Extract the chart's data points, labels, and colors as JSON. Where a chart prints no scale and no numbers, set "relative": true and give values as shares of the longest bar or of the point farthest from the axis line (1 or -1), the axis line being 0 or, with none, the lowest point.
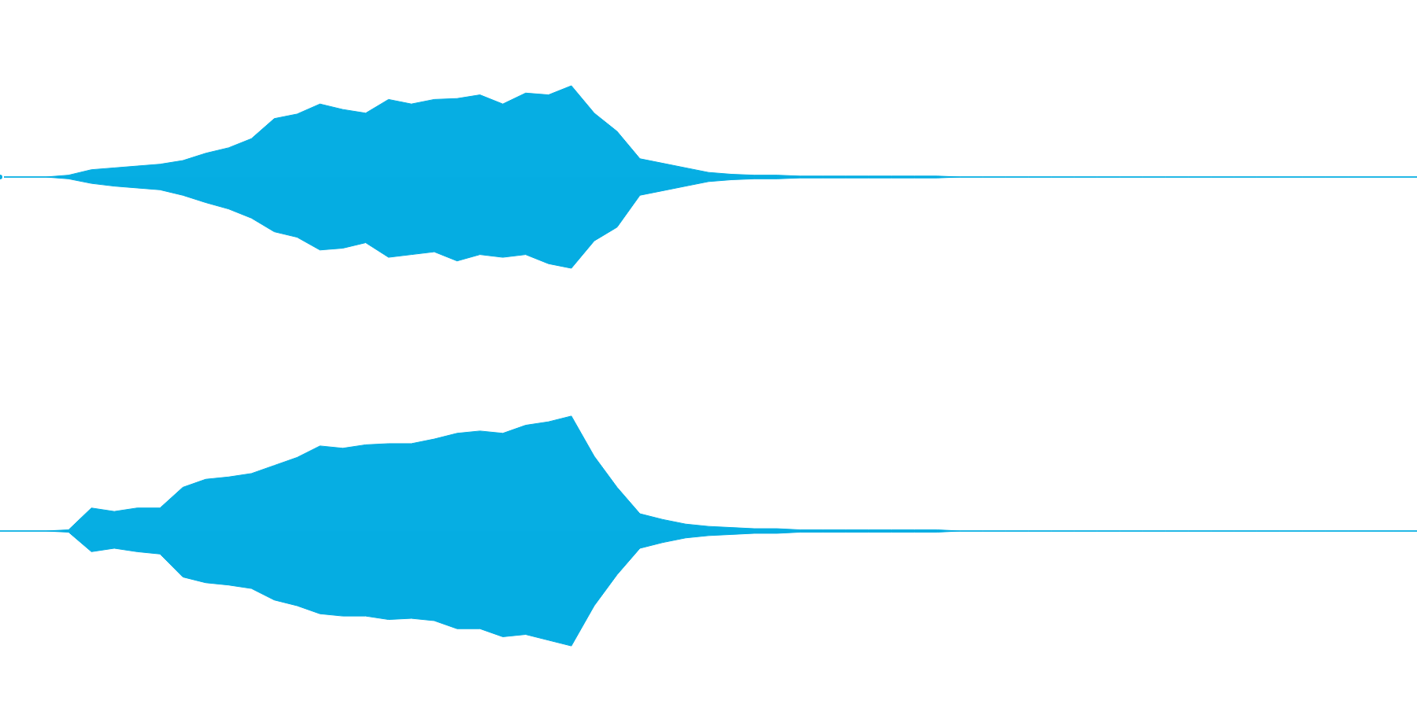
{
  "chart_data": [
    {
      "type": "area",
      "relative": true,
      "categories": [
        null,
        null,
        null,
        null,
        null,
        null,
        null,
        null,
        null,
        null,
        null,
        null,
        null,
        null,
        null,
        null,
        null,
        null,
        null,
        null,
        null,
        null,
        null,
        null,
        null,
        null,
        null,
        null,
        null,
        null,
        null,
        null,
        null,
        null,
        null,
        null,
        null,
        null,
        null,
        null,
        null,
        null,
        null,
        null,
        null,
        null,
        null,
        null,
        null,
        null,
        null,
        null,
        null,
        null,
        null,
        null,
        null,
        null,
        null,
        null,
        null,
        null,
        null
      ],
      "series": [
        {
          "color": "#06aee3",
          "values": [
            0,
            0,
            0,
            0.02,
            0.08,
            0.1,
            0.12,
            0.14,
            0.18,
            0.26,
            0.32,
            0.42,
            0.64,
            0.69,
            0.8,
            0.74,
            0.7,
            0.85,
            0.8,
            0.85,
            0.86,
            0.9,
            0.8,
            0.92,
            0.9,
            1,
            0.7,
            0.5,
            0.2,
            0.15,
            0.1,
            0.05,
            0.03,
            0.02,
            0.02,
            0.01,
            0.01,
            0.01,
            0.01,
            0.01,
            0.01,
            0.01,
            0,
            0,
            0,
            0,
            0,
            0,
            0,
            0,
            0,
            0,
            0,
            0,
            0,
            0,
            0,
            0,
            0,
            0,
            0,
            0,
            0
          ]
        },
        {
          "color": "#05ade2",
          "values": [
            0,
            0,
            0,
            -0.02,
            -0.07,
            -0.1,
            -0.12,
            -0.14,
            -0.2,
            -0.28,
            -0.35,
            -0.45,
            -0.6,
            -0.66,
            -0.8,
            -0.78,
            -0.72,
            -0.88,
            -0.85,
            -0.82,
            -0.92,
            -0.85,
            -0.88,
            -0.85,
            -0.95,
            -1,
            -0.7,
            -0.55,
            -0.2,
            -0.15,
            -0.1,
            -0.05,
            -0.03,
            -0.02,
            -0.02,
            -0.01,
            -0.01,
            -0.01,
            -0.01,
            -0.01,
            -0.01,
            -0.01,
            0,
            0,
            0,
            0,
            0,
            0,
            0,
            0,
            0,
            0,
            0,
            0,
            0,
            0,
            0,
            0,
            0,
            0,
            0,
            0,
            0
          ]
        }
      ]
    },
    {
      "type": "area",
      "relative": true,
      "categories": [
        null,
        null,
        null,
        null,
        null,
        null,
        null,
        null,
        null,
        null,
        null,
        null,
        null,
        null,
        null,
        null,
        null,
        null,
        null,
        null,
        null,
        null,
        null,
        null,
        null,
        null,
        null,
        null,
        null,
        null,
        null,
        null,
        null,
        null,
        null,
        null,
        null,
        null,
        null,
        null,
        null,
        null,
        null,
        null,
        null,
        null,
        null,
        null,
        null,
        null,
        null,
        null,
        null,
        null,
        null,
        null,
        null,
        null,
        null,
        null,
        null,
        null,
        null
      ],
      "series": [
        {
          "color": "#06aee3",
          "values": [
            0,
            0,
            0,
            0.01,
            0.2,
            0.17,
            0.2,
            0.2,
            0.38,
            0.45,
            0.47,
            0.5,
            0.57,
            0.64,
            0.74,
            0.72,
            0.75,
            0.76,
            0.76,
            0.8,
            0.85,
            0.87,
            0.85,
            0.92,
            0.95,
            1,
            0.65,
            0.38,
            0.15,
            0.1,
            0.06,
            0.04,
            0.03,
            0.02,
            0.02,
            0.01,
            0.01,
            0.01,
            0.01,
            0.01,
            0.01,
            0.01,
            0,
            0,
            0,
            0,
            0,
            0,
            0,
            0,
            0,
            0,
            0,
            0,
            0,
            0,
            0,
            0,
            0,
            0,
            0,
            0,
            0
          ]
        },
        {
          "color": "#05ade2",
          "values": [
            0,
            0,
            0,
            -0.01,
            -0.18,
            -0.15,
            -0.18,
            -0.2,
            -0.4,
            -0.45,
            -0.47,
            -0.5,
            -0.6,
            -0.65,
            -0.72,
            -0.74,
            -0.74,
            -0.77,
            -0.76,
            -0.78,
            -0.85,
            -0.85,
            -0.92,
            -0.9,
            -0.95,
            -1,
            -0.65,
            -0.38,
            -0.15,
            -0.1,
            -0.06,
            -0.04,
            -0.03,
            -0.02,
            -0.02,
            -0.01,
            -0.01,
            -0.01,
            -0.01,
            -0.01,
            -0.01,
            -0.01,
            0,
            0,
            0,
            0,
            0,
            0,
            0,
            0,
            0,
            0,
            0,
            0,
            0,
            0,
            0,
            0,
            0,
            0,
            0,
            0,
            0
          ]
        }
      ]
    }
  ]
}
